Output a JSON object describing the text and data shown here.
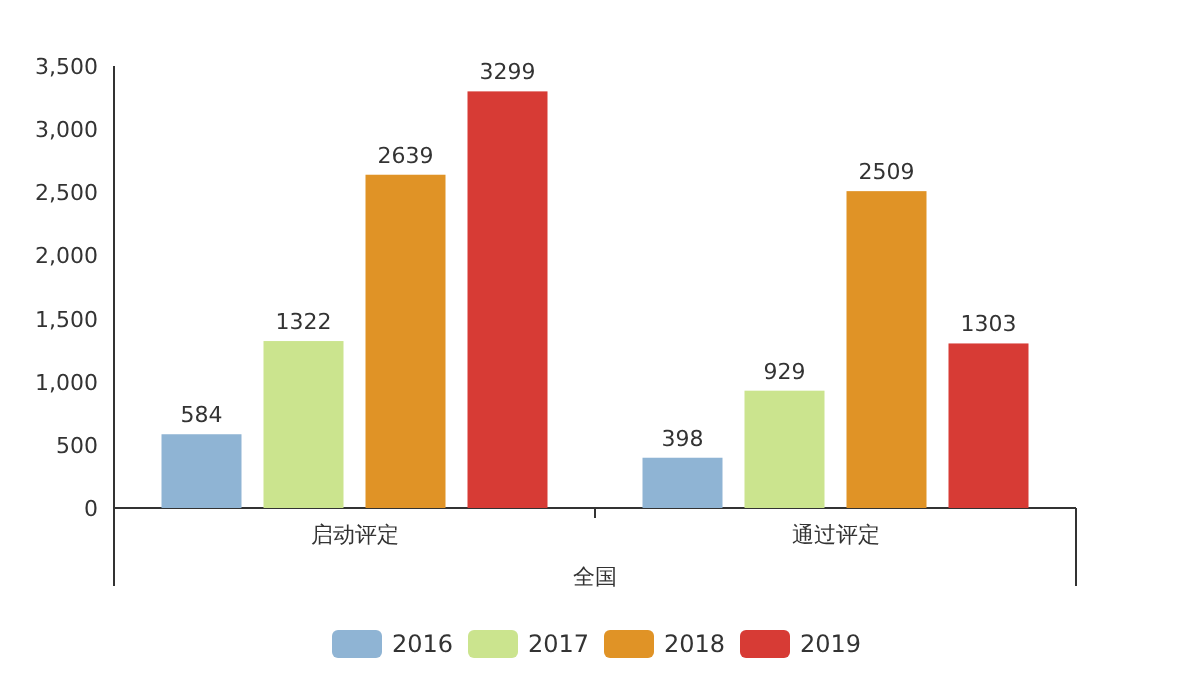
{
  "chart_data": {
    "type": "bar",
    "categories": [
      "启动评定",
      "通过评定"
    ],
    "xlabel": "全国",
    "series": [
      {
        "name": "2016",
        "color": "#8fb4d4",
        "values": [
          584,
          398
        ]
      },
      {
        "name": "2017",
        "color": "#cbe48e",
        "values": [
          1322,
          929
        ]
      },
      {
        "name": "2018",
        "color": "#e09326",
        "values": [
          2639,
          2509
        ]
      },
      {
        "name": "2019",
        "color": "#d73b35",
        "values": [
          3299,
          1303
        ]
      }
    ],
    "ylim": [
      0,
      3500
    ],
    "yticks": [
      {
        "value": 0,
        "label": "0"
      },
      {
        "value": 500,
        "label": "500"
      },
      {
        "value": 1000,
        "label": "1,000"
      },
      {
        "value": 1500,
        "label": "1,500"
      },
      {
        "value": 2000,
        "label": "2,000"
      },
      {
        "value": 2500,
        "label": "2,500"
      },
      {
        "value": 3000,
        "label": "3,000"
      },
      {
        "value": 3500,
        "label": "3,500"
      }
    ],
    "data_labels": true,
    "legend": "bottom"
  }
}
